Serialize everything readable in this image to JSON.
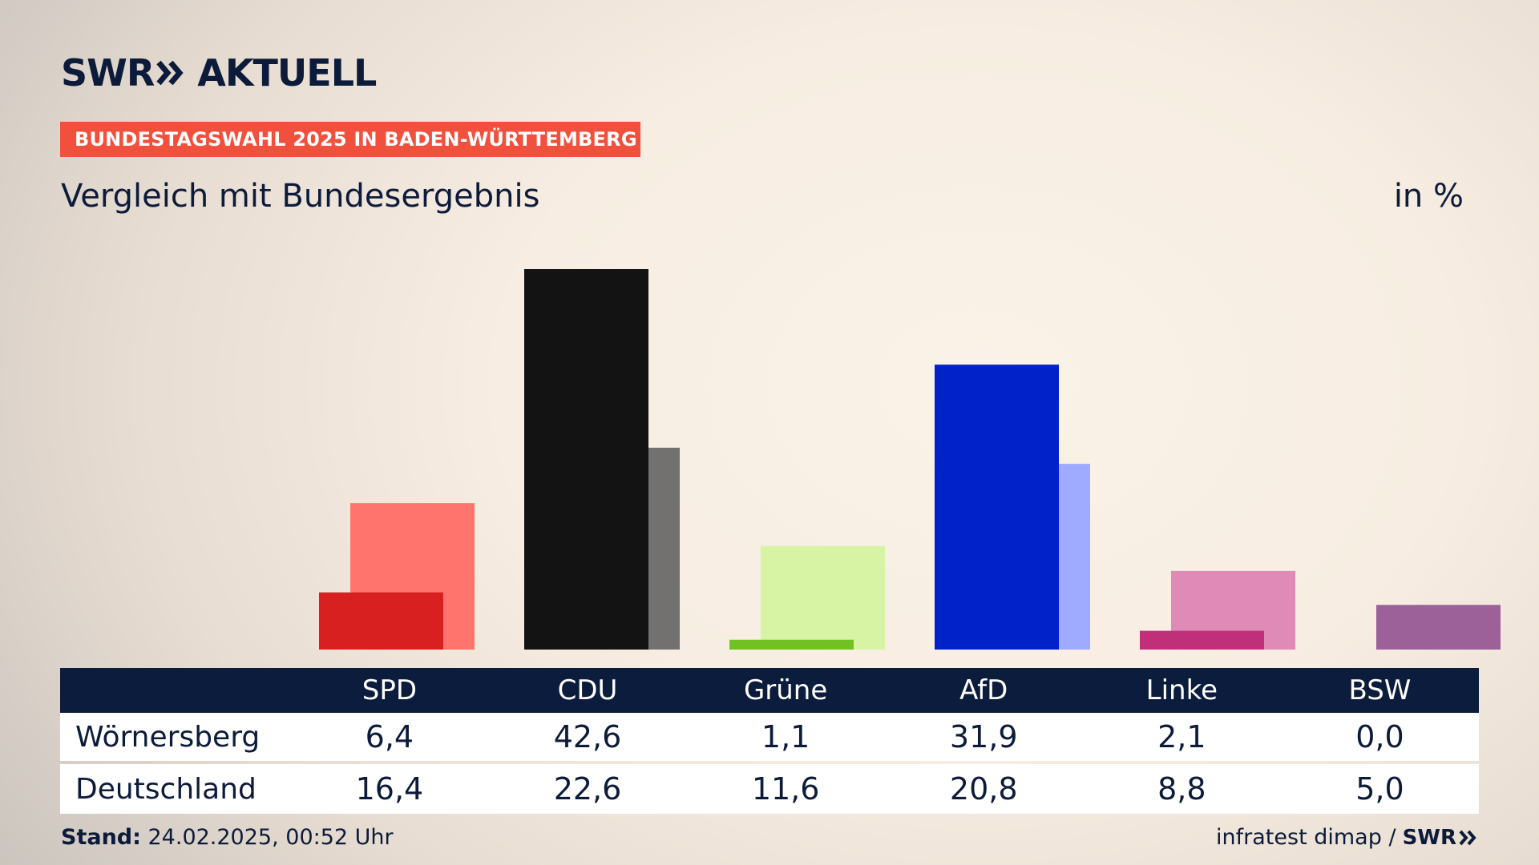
{
  "brand": {
    "logo_left": "SWR",
    "logo_right": "AKTUELL",
    "logo_icon": "double-chevron-icon"
  },
  "badge": "BUNDESTAGSWAHL 2025 IN BADEN-WÜRTTEMBERG",
  "subtitle": "Vergleich mit Bundesergebnis",
  "unit": "in %",
  "chart_data": {
    "type": "bar",
    "title": "Vergleich mit Bundesergebnis",
    "ylabel": "in %",
    "categories": [
      "SPD",
      "CDU",
      "Grüne",
      "AfD",
      "Linke",
      "BSW"
    ],
    "series": [
      {
        "name": "Wörnersberg",
        "values": [
          6.4,
          42.6,
          1.1,
          31.9,
          2.1,
          0.0
        ]
      },
      {
        "name": "Deutschland",
        "values": [
          16.4,
          22.6,
          11.6,
          20.8,
          8.8,
          5.0
        ]
      }
    ],
    "colors": {
      "local": [
        "#d7201f",
        "#131313",
        "#72c122",
        "#0022c8",
        "#c0307a",
        "#9b6198"
      ],
      "national": [
        "#ff746c",
        "#737170",
        "#d7f4a5",
        "#9fabff",
        "#e08ab8",
        "#9b6198"
      ]
    },
    "ylim": [
      0,
      42.6
    ],
    "grid": false,
    "legend": "table-below"
  },
  "table": {
    "headers": [
      "SPD",
      "CDU",
      "Grüne",
      "AfD",
      "Linke",
      "BSW"
    ],
    "rows": [
      {
        "label": "Wörnersberg",
        "values": [
          "6,4",
          "42,6",
          "1,1",
          "31,9",
          "2,1",
          "0,0"
        ]
      },
      {
        "label": "Deutschland",
        "values": [
          "16,4",
          "22,6",
          "11,6",
          "20,8",
          "8,8",
          "5,0"
        ]
      }
    ]
  },
  "footer": {
    "stand_label": "Stand:",
    "stand_value": " 24.02.2025, 00:52 Uhr",
    "source": "infratest dimap /",
    "source_logo": "SWR"
  }
}
